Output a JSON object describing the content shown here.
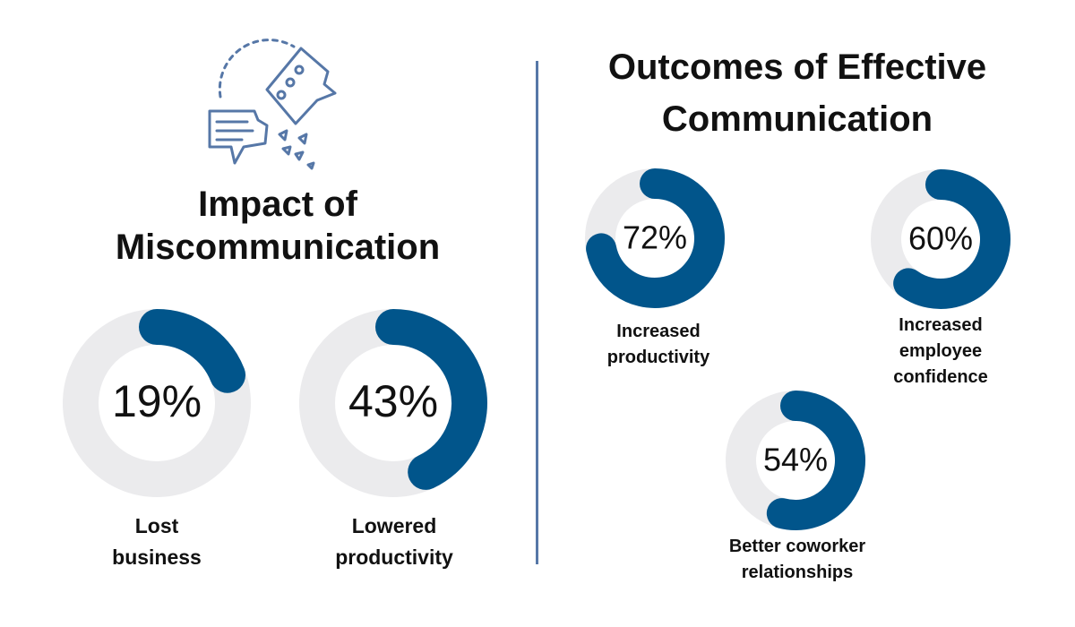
{
  "colors": {
    "track": "#ebebed",
    "fill": "#01558b",
    "icon": "#5677a7",
    "divider": "#5677a7"
  },
  "icon": "broken-speech-bubbles-icon",
  "left_section": {
    "title_line1": "Impact of",
    "title_line2": "Miscommunication"
  },
  "right_section": {
    "title_line1": "Outcomes of Effective",
    "title_line2": "Communication"
  },
  "chart_data": [
    {
      "type": "donut",
      "title": "Impact of Miscommunication",
      "items": [
        {
          "value": 19,
          "label": "19%",
          "label_lines": [
            "Lost",
            "business"
          ]
        },
        {
          "value": 43,
          "label": "43%",
          "label_lines": [
            "Lowered",
            "productivity"
          ]
        }
      ]
    },
    {
      "type": "donut",
      "title": "Outcomes of Effective Communication",
      "items": [
        {
          "value": 72,
          "label": "72%",
          "label_lines": [
            "Increased",
            "productivity"
          ]
        },
        {
          "value": 60,
          "label": "60%",
          "label_lines": [
            "Increased",
            "employee",
            "confidence"
          ]
        },
        {
          "value": 54,
          "label": "54%",
          "label_lines": [
            "Better coworker",
            "relationships"
          ]
        }
      ]
    }
  ]
}
